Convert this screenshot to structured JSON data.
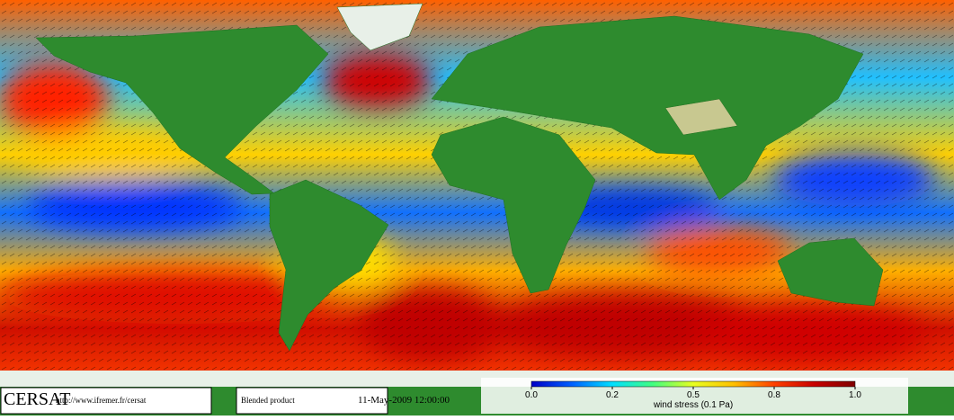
{
  "header": {
    "logo": "CERSAT",
    "url": "http://www.ifremer.fr/cersat",
    "product": "Blended product",
    "date": "11-May-2009 12:00:00"
  },
  "colorbar": {
    "label": "wind stress (0.1 Pa)",
    "lim": [
      0,
      1
    ],
    "ticks": [
      {
        "value": 0,
        "label": "0.0"
      },
      0.2,
      0.5,
      0.8,
      {
        "value": 1,
        "label": "1.0"
      }
    ],
    "colors": [
      "#0000c8",
      "#0060ff",
      "#00e0ff",
      "#40ff80",
      "#e8ff20",
      "#ffc000",
      "#ff4000",
      "#c80000",
      "#800000"
    ]
  }
}
